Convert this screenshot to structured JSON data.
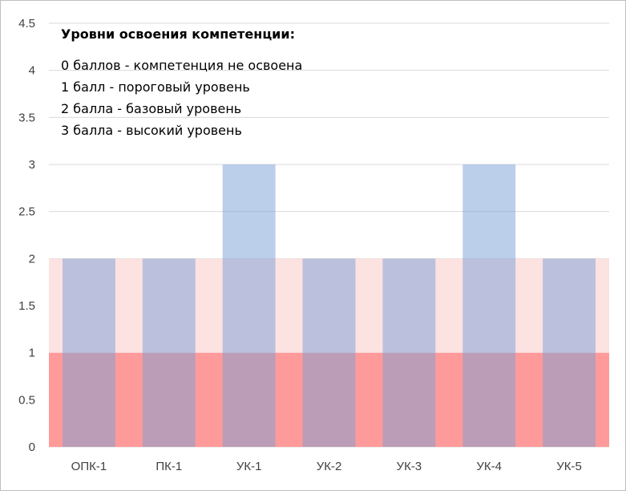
{
  "chart_data": {
    "type": "bar",
    "categories": [
      "ОПК-1",
      "ПК-1",
      "УК-1",
      "УК-2",
      "УК-3",
      "УК-4",
      "УК-5"
    ],
    "values": [
      2,
      2,
      3,
      2,
      2,
      3,
      2
    ],
    "ylim": [
      0,
      4.5
    ],
    "yticks": [
      "0",
      "0.5",
      "1",
      "1.5",
      "2",
      "2.5",
      "3",
      "3.5",
      "4",
      "4.5"
    ],
    "bands": [
      {
        "from": 0,
        "to": 1,
        "color": "#ff9a9a"
      },
      {
        "from": 1,
        "to": 2,
        "color": "#fde2e2"
      }
    ],
    "bar_color": "#7a9fd6",
    "grid": true,
    "annotation": {
      "title": "Уровни освоения компетенции:",
      "lines": [
        "0 баллов - компетенция не освоена",
        "1 балл - пороговый уровень",
        "2 балла - базовый уровень",
        "3 балла - высокий уровень"
      ]
    }
  }
}
